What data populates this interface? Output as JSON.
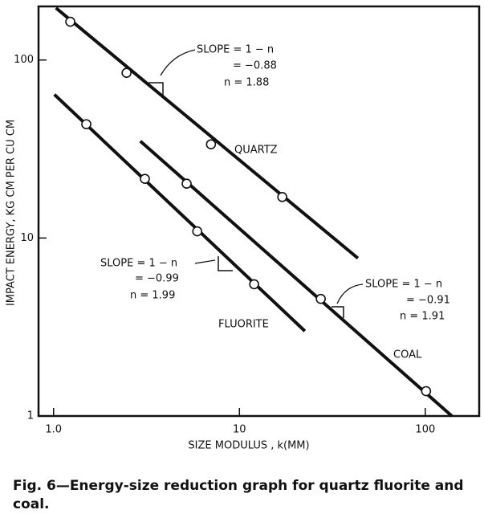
{
  "chart_data": {
    "type": "scatter",
    "y_label": "IMPACT ENERGY, KG CM PER CU CM",
    "x_label": "SIZE MODULUS , k(MM)",
    "log_x": true,
    "log_y": true,
    "xlim": [
      0.83,
      195
    ],
    "ylim": [
      1,
      200
    ],
    "xticks": [
      {
        "value": 1,
        "label": "1.0"
      },
      10,
      100
    ],
    "yticks": [
      1,
      10,
      100
    ],
    "series": [
      {
        "name": "QUARTZ",
        "color": "#111111",
        "x": [
          1.23,
          2.47,
          7.03,
          17.0
        ],
        "values": [
          164,
          84.7,
          33.6,
          17.0
        ],
        "fit_x": [
          1.03,
          43.4
        ],
        "fit_values": [
          196,
          7.7
        ]
      },
      {
        "name": "FLUORITE",
        "color": "#111111",
        "x": [
          1.5,
          3.1,
          5.93,
          12.0
        ],
        "values": [
          43.6,
          21.5,
          10.9,
          5.5
        ],
        "fit_x": [
          1.01,
          22.5
        ],
        "fit_values": [
          64,
          3.0
        ]
      },
      {
        "name": "COAL",
        "color": "#111111",
        "x": [
          5.2,
          27.4,
          101
        ],
        "values": [
          20.2,
          4.55,
          1.38
        ],
        "fit_x": [
          2.93,
          139
        ],
        "fit_values": [
          35,
          1.0
        ]
      }
    ],
    "annotations": [
      {
        "lines": [
          "SLOPE = 1 − n",
          "= −0.88",
          "n = 1.88"
        ]
      },
      {
        "lines": [
          "SLOPE = 1 − n",
          "= −0.99",
          "n = 1.99"
        ]
      },
      {
        "lines": [
          "SLOPE = 1 − n",
          "= −0.91",
          "n = 1.91"
        ]
      }
    ],
    "caption": "Fig. 6—Energy-size reduction graph for quartz fluorite and coal."
  }
}
